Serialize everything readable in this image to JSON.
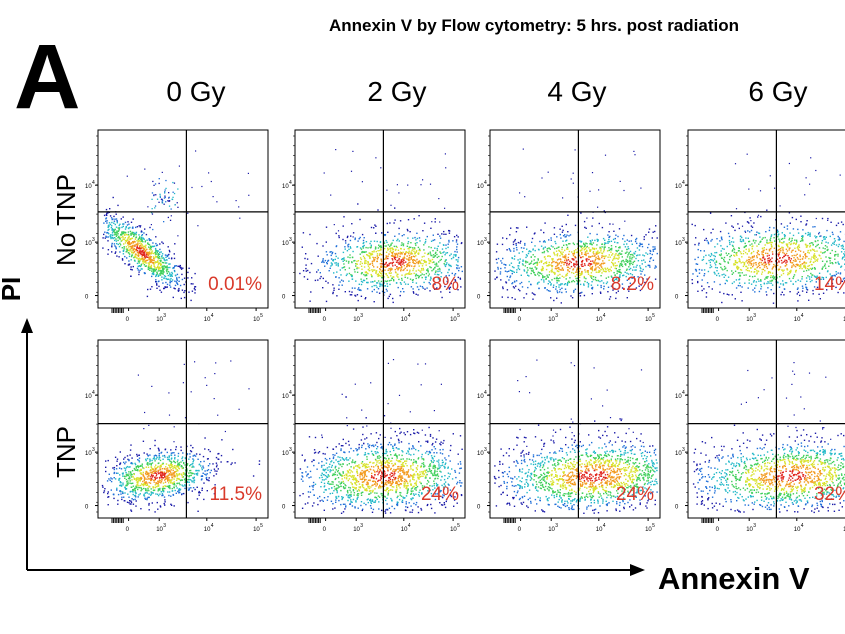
{
  "figure": {
    "panel_letter": "A",
    "title": "Annexin V by Flow cytometry: 5 hrs. post radiation",
    "x_axis_label": "Annexin V",
    "y_axis_label": "PI"
  },
  "chart_data": {
    "type": "scatter",
    "title": "Annexin V by Flow cytometry: 5 hrs. post radiation",
    "xlabel": "Annexin V",
    "ylabel": "PI",
    "columns": [
      "0 Gy",
      "2 Gy",
      "4 Gy",
      "6 Gy"
    ],
    "rows": [
      "No TNP",
      "TNP"
    ],
    "x_tick_labels": [
      "0",
      "10",
      "3",
      "10",
      "4",
      "10",
      "5"
    ],
    "y_tick_labels": [
      "0",
      "10",
      "3",
      "10",
      "4"
    ],
    "x_ticks": [
      {
        "label": "0",
        "sup": ""
      },
      {
        "label": "10",
        "sup": "3"
      },
      {
        "label": "10",
        "sup": "4"
      },
      {
        "label": "10",
        "sup": "5"
      }
    ],
    "y_ticks": [
      {
        "label": "0",
        "sup": ""
      },
      {
        "label": "10",
        "sup": "3"
      },
      {
        "label": "10",
        "sup": "4"
      }
    ],
    "quadrant_percentages": [
      [
        "0.01%",
        "8%",
        "8.2%",
        "14%"
      ],
      [
        "11.5%",
        "24%",
        "24%",
        "32%"
      ]
    ],
    "quadrant_percent_values": [
      [
        0.01,
        8,
        8.2,
        14
      ],
      [
        11.5,
        24,
        24,
        32
      ]
    ],
    "percent_color": "#d93a2b",
    "density_colors": [
      "#1a1aa8",
      "#1f6fd8",
      "#22b8c8",
      "#3fcf5a",
      "#d8e22a",
      "#f29a1d",
      "#e0261e"
    ]
  }
}
